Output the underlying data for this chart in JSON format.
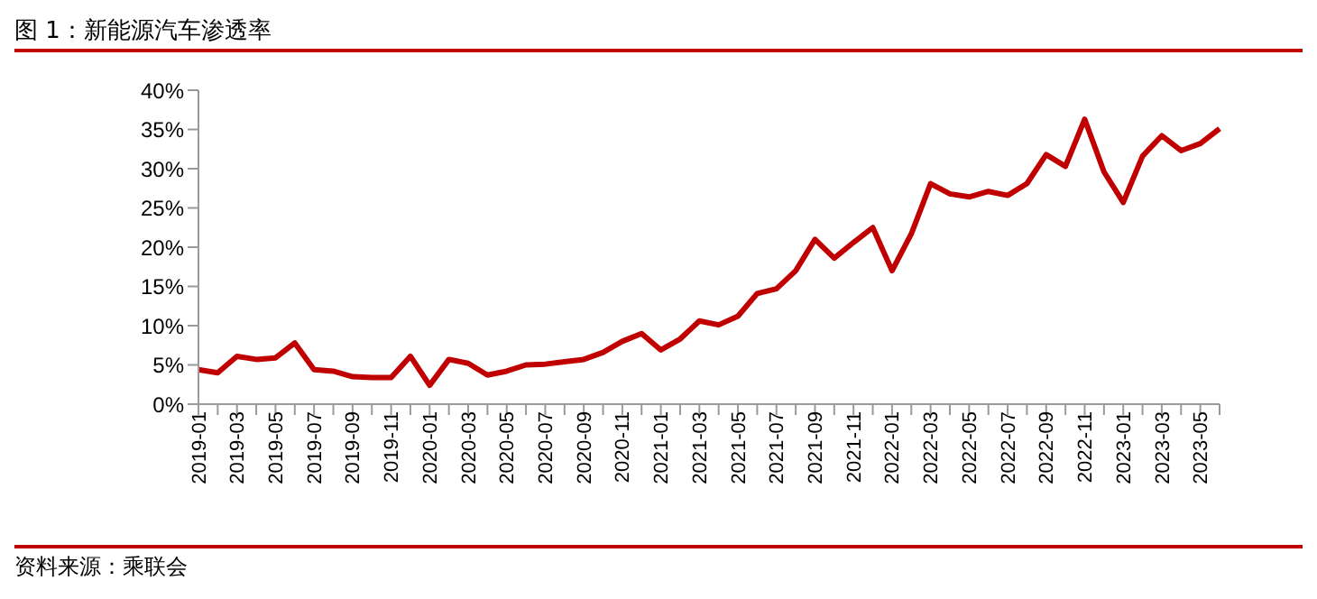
{
  "chart_data": {
    "type": "line",
    "title": "图 1：新能源汽车渗透率",
    "categories": [
      "2019-01",
      null,
      "2019-03",
      null,
      "2019-05",
      null,
      "2019-07",
      null,
      "2019-09",
      null,
      "2019-11",
      null,
      "2020-01",
      null,
      "2020-03",
      null,
      "2020-05",
      null,
      "2020-07",
      null,
      "2020-09",
      null,
      "2020-11",
      null,
      "2021-01",
      null,
      "2021-03",
      null,
      "2021-05",
      null,
      "2021-07",
      null,
      "2021-09",
      null,
      "2021-11",
      null,
      "2022-01",
      null,
      "2022-03",
      null,
      "2022-05",
      null,
      "2022-07",
      null,
      "2022-09",
      null,
      "2022-11",
      null,
      "2023-01",
      null,
      "2023-03",
      null,
      "2023-05",
      null
    ],
    "series": [
      {
        "color": "#c00000",
        "values": [
          4.4,
          4.0,
          6.1,
          5.7,
          5.9,
          7.8,
          4.4,
          4.2,
          3.5,
          3.4,
          3.4,
          6.1,
          2.4,
          5.7,
          5.2,
          3.7,
          4.2,
          5.0,
          5.1,
          5.4,
          5.7,
          6.6,
          8.0,
          9.0,
          6.9,
          8.3,
          10.6,
          10.1,
          11.2,
          14.1,
          14.7,
          17.0,
          21.0,
          18.6,
          20.6,
          22.5,
          17.0,
          21.7,
          28.1,
          26.8,
          26.4,
          27.1,
          26.6,
          28.1,
          31.8,
          30.3,
          36.3,
          29.6,
          25.7,
          31.6,
          34.2,
          32.3,
          33.2,
          35.1
        ]
      }
    ],
    "ylim": [
      0,
      40
    ],
    "yticks": [
      {
        "value": 0,
        "label": "0%"
      },
      {
        "value": 5,
        "label": "5%"
      },
      {
        "value": 10,
        "label": "10%"
      },
      {
        "value": 15,
        "label": "15%"
      },
      {
        "value": 20,
        "label": "20%"
      },
      {
        "value": 25,
        "label": "25%"
      },
      {
        "value": 30,
        "label": "30%"
      },
      {
        "value": 35,
        "label": "35%"
      },
      {
        "value": 40,
        "label": "40%"
      }
    ],
    "grid": false,
    "legend": false,
    "marker": "none",
    "line_style": "solid",
    "annotations": [
      "资料来源：乘联会"
    ]
  }
}
